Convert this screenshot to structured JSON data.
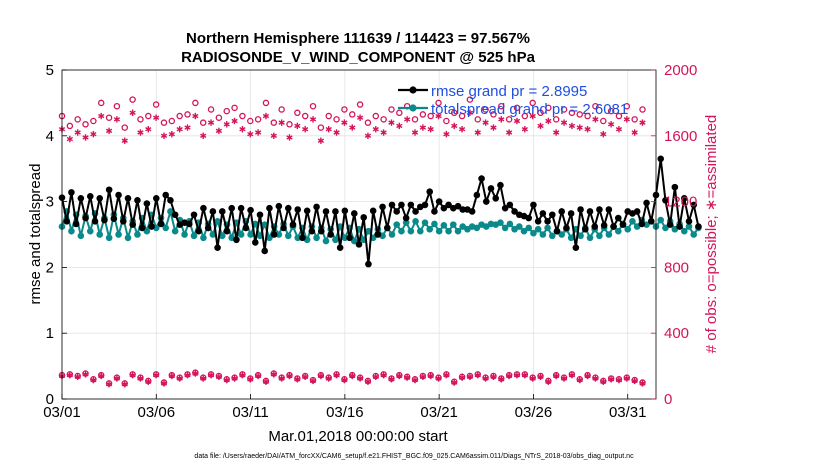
{
  "colors": {
    "rmse": "#000000",
    "spread": "#0a8a8a",
    "obs": "#d4145a",
    "legend_text": "#1f4fe0",
    "grid": "#e2e2e2"
  },
  "chart_data": {
    "type": "line",
    "title": "Northern Hemisphere 111639 / 114423 = 97.567%",
    "subtitle": "RADIOSONDE_V_WIND_COMPONENT @ 525 hPa",
    "xlabel": "Mar.01,2018 00:00:00 start",
    "ylabel_left": "rmse and totalspread",
    "ylabel_right": "# of obs: o=possible; ∗=assimilated",
    "x_tick_labels": [
      "03/01",
      "03/06",
      "03/11",
      "03/16",
      "03/21",
      "03/26",
      "03/31"
    ],
    "x_tick_days": [
      0,
      5,
      10,
      15,
      20,
      25,
      30
    ],
    "xlim": [
      0,
      31.5
    ],
    "ylim_left": [
      0,
      5
    ],
    "y_ticks_left": [
      "0",
      "1",
      "2",
      "3",
      "4",
      "5"
    ],
    "ylim_right": [
      0,
      2000
    ],
    "y_ticks_right": [
      "0",
      "400",
      "800",
      "1200",
      "1600",
      "2000"
    ],
    "grid": "on",
    "legend_position": "top-right",
    "legend": [
      {
        "name": "rmse",
        "label": "rmse grand pr = 2.8995"
      },
      {
        "name": "totalspread",
        "label": "totalspread grand pr = 2.6081"
      }
    ],
    "step_days": 0.25,
    "series": [
      {
        "name": "rmse",
        "axis": "left",
        "style": "line-dot",
        "values": [
          3.06,
          2.7,
          3.14,
          2.66,
          3.05,
          2.75,
          3.08,
          2.7,
          3.05,
          2.72,
          3.18,
          2.74,
          3.1,
          2.7,
          3.05,
          2.65,
          3.02,
          2.6,
          2.97,
          2.62,
          3.05,
          2.66,
          3.1,
          3.02,
          2.8,
          2.65,
          2.68,
          2.66,
          2.8,
          2.55,
          2.9,
          2.6,
          2.85,
          2.3,
          2.85,
          2.55,
          2.9,
          2.42,
          2.9,
          2.6,
          2.87,
          2.38,
          2.8,
          2.25,
          2.9,
          2.5,
          2.93,
          2.6,
          2.9,
          2.65,
          2.88,
          2.45,
          2.86,
          2.55,
          2.92,
          2.55,
          2.85,
          2.5,
          2.85,
          2.3,
          2.86,
          2.45,
          2.82,
          2.35,
          2.76,
          2.05,
          2.86,
          2.5,
          2.92,
          2.6,
          2.95,
          2.85,
          2.95,
          2.75,
          2.95,
          2.85,
          2.92,
          2.95,
          3.15,
          2.85,
          3.0,
          2.9,
          2.95,
          2.9,
          2.93,
          2.88,
          2.88,
          2.85,
          3.1,
          3.35,
          3.0,
          3.2,
          3.05,
          3.25,
          2.9,
          2.95,
          2.85,
          2.8,
          2.78,
          2.75,
          2.95,
          2.7,
          2.82,
          2.7,
          2.8,
          2.55,
          2.85,
          2.6,
          2.82,
          2.3,
          2.88,
          2.58,
          2.85,
          2.62,
          2.88,
          2.64,
          2.88,
          2.62,
          2.75,
          2.65,
          2.85,
          2.82,
          2.85,
          2.66,
          2.98,
          2.7,
          3.1,
          3.65,
          3.02,
          2.65,
          3.22,
          2.62,
          3.05,
          2.7,
          2.95,
          2.62
        ]
      },
      {
        "name": "totalspread",
        "axis": "left",
        "style": "line-dot",
        "values": [
          2.62,
          2.85,
          2.55,
          2.8,
          2.48,
          2.78,
          2.55,
          2.82,
          2.5,
          2.75,
          2.45,
          2.8,
          2.5,
          2.75,
          2.45,
          2.7,
          2.5,
          2.75,
          2.55,
          2.8,
          2.6,
          2.75,
          2.6,
          2.85,
          2.55,
          2.72,
          2.5,
          2.7,
          2.48,
          2.68,
          2.45,
          2.66,
          2.5,
          2.7,
          2.48,
          2.65,
          2.45,
          2.68,
          2.5,
          2.7,
          2.5,
          2.66,
          2.48,
          2.65,
          2.45,
          2.62,
          2.5,
          2.66,
          2.48,
          2.62,
          2.45,
          2.6,
          2.42,
          2.62,
          2.45,
          2.6,
          2.4,
          2.58,
          2.42,
          2.62,
          2.45,
          2.6,
          2.4,
          2.58,
          2.42,
          2.55,
          2.45,
          2.58,
          2.48,
          2.6,
          2.5,
          2.65,
          2.55,
          2.68,
          2.55,
          2.7,
          2.55,
          2.68,
          2.58,
          2.66,
          2.55,
          2.64,
          2.55,
          2.65,
          2.55,
          2.62,
          2.58,
          2.62,
          2.6,
          2.65,
          2.62,
          2.66,
          2.65,
          2.68,
          2.6,
          2.66,
          2.58,
          2.62,
          2.55,
          2.6,
          2.52,
          2.58,
          2.5,
          2.6,
          2.48,
          2.55,
          2.5,
          2.58,
          2.45,
          2.58,
          2.48,
          2.6,
          2.45,
          2.58,
          2.48,
          2.6,
          2.5,
          2.62,
          2.55,
          2.66,
          2.58,
          2.7,
          2.62,
          2.72,
          2.65,
          2.7,
          2.62,
          2.72,
          2.6,
          2.7,
          2.58,
          2.66,
          2.55,
          2.62,
          2.5,
          2.6
        ]
      },
      {
        "name": "obs_possible_upper",
        "axis": "right",
        "style": "circle",
        "values": [
          1720,
          1660,
          1700,
          1670,
          1690,
          1800,
          1710,
          1780,
          1650,
          1820,
          1700,
          1720,
          1790,
          1680,
          1690,
          1720,
          1730,
          1800,
          1680,
          1760,
          1710,
          1750,
          1770,
          1720,
          1690,
          1700,
          1800,
          1680,
          1760,
          1670,
          1740,
          1720,
          1780,
          1650,
          1720,
          1700,
          1760,
          1730,
          1790,
          1680,
          1720,
          1700,
          1760,
          1740,
          1780,
          1700,
          1730,
          1720,
          1800,
          1690,
          1740,
          1720,
          1820,
          1700,
          1760,
          1730,
          1780,
          1700,
          1770,
          1720,
          1800,
          1740,
          1770,
          1700,
          1760,
          1740,
          1730,
          1720,
          1780,
          1690,
          1750,
          1720,
          1780,
          1700,
          1760
        ]
      },
      {
        "name": "obs_assimilated_upper",
        "axis": "right",
        "style": "star",
        "values": [
          1640,
          1580,
          1620,
          1590,
          1610,
          1720,
          1630,
          1700,
          1570,
          1740,
          1620,
          1640,
          1710,
          1600,
          1610,
          1640,
          1650,
          1720,
          1600,
          1680,
          1630,
          1670,
          1690,
          1640,
          1610,
          1620,
          1720,
          1600,
          1680,
          1590,
          1660,
          1640,
          1700,
          1570,
          1640,
          1620,
          1680,
          1650,
          1710,
          1600,
          1640,
          1620,
          1680,
          1660,
          1700,
          1620,
          1650,
          1640,
          1720,
          1610,
          1660,
          1640,
          1740,
          1620,
          1680,
          1650,
          1700,
          1620,
          1690,
          1640,
          1720,
          1660,
          1690,
          1620,
          1680,
          1660,
          1650,
          1640,
          1700,
          1610,
          1670,
          1640,
          1700,
          1620,
          1680
        ]
      },
      {
        "name": "obs_possible_lower",
        "axis": "right",
        "style": "circle",
        "values": [
          145,
          150,
          140,
          155,
          120,
          145,
          95,
          130,
          95,
          150,
          130,
          110,
          150,
          100,
          145,
          130,
          150,
          160,
          130,
          150,
          140,
          120,
          130,
          150,
          125,
          145,
          110,
          155,
          130,
          145,
          125,
          140,
          115,
          145,
          130,
          150,
          120,
          145,
          130,
          110,
          140,
          150,
          125,
          145,
          135,
          120,
          140,
          145,
          130,
          150,
          105,
          135,
          140,
          150,
          130,
          140,
          125,
          145,
          150,
          150,
          130,
          140,
          110,
          145,
          130,
          150,
          120,
          145,
          130,
          110,
          125,
          120,
          130,
          115,
          100
        ]
      },
      {
        "name": "obs_assimilated_lower",
        "axis": "right",
        "style": "star",
        "values": [
          140,
          145,
          135,
          150,
          115,
          140,
          90,
          125,
          90,
          145,
          125,
          105,
          145,
          95,
          140,
          125,
          145,
          155,
          125,
          145,
          135,
          115,
          125,
          145,
          120,
          140,
          105,
          150,
          125,
          140,
          120,
          135,
          110,
          140,
          125,
          145,
          115,
          140,
          125,
          105,
          135,
          145,
          120,
          140,
          130,
          115,
          135,
          140,
          125,
          145,
          100,
          130,
          135,
          145,
          125,
          135,
          120,
          140,
          145,
          145,
          125,
          135,
          105,
          140,
          125,
          145,
          115,
          140,
          125,
          105,
          120,
          115,
          125,
          110,
          95
        ]
      }
    ]
  },
  "footer": "data file: /Users/raeder/DAI/ATM_forcXX/CAM6_setup/f.e21.FHIST_BGC.f09_025.CAM6assim.011/Diags_NTrS_2018-03/obs_diag_output.nc"
}
